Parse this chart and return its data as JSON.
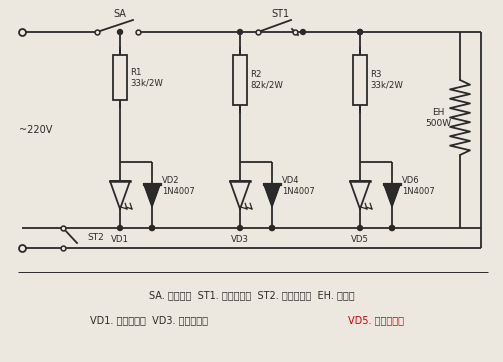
{
  "bg_color": "#ede8df",
  "line_color": "#2a2a2a",
  "text_color": "#2a2a2a",
  "red_text_color": "#cc0000",
  "label_220v": "~220V",
  "label_SA": "SA",
  "label_ST1": "ST1",
  "label_ST2": "ST2",
  "label_R1": "R1\n33k/2W",
  "label_R2": "R2\n82k/2W",
  "label_R3": "R3\n33k/2W",
  "label_EH": "EH\n500W",
  "label_VD1": "VD1",
  "label_VD2": "VD2\n1N4007",
  "label_VD3": "VD3",
  "label_VD4": "VD4\n1N4007",
  "label_VD5": "VD5",
  "label_VD6": "VD6\n1N4007",
  "caption1": "SA. 电源开关  ST1. 制热温控器  ST2. 保护温控器  EH. 发热器",
  "caption2a": "VD1. 电源指示灯  VD3. 保温指示灯  ",
  "caption2b": "VD5. 制热指示灯"
}
